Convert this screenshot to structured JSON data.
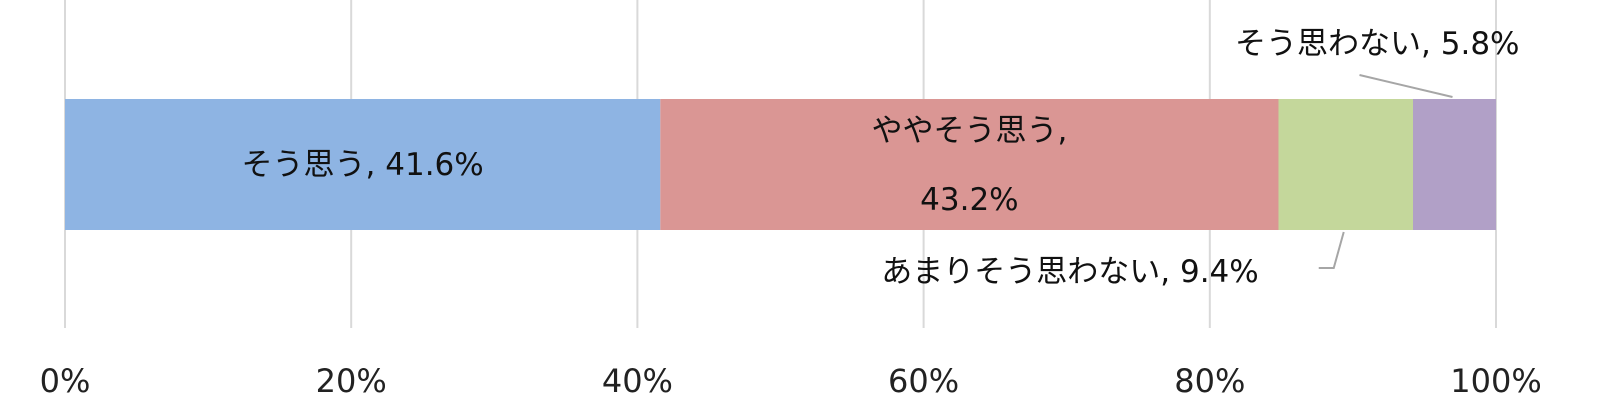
{
  "chart_data": {
    "type": "bar",
    "orientation": "horizontal",
    "stacked": true,
    "percent_axis": true,
    "xlim": [
      0,
      100
    ],
    "x_ticks": [
      "0%",
      "20%",
      "40%",
      "60%",
      "80%",
      "100%"
    ],
    "grid": true,
    "series": [
      {
        "label": "そう思う, 41.6%",
        "value": 41.6,
        "color": "#8eb4e3"
      },
      {
        "label": "ややそう思う, 43.2%",
        "label_lines": [
          "ややそう思う,",
          "43.2%"
        ],
        "value": 43.2,
        "color": "#da9694"
      },
      {
        "label": "あまりそう思わない, 9.4%",
        "value": 9.4,
        "color": "#c4d79b"
      },
      {
        "label": "そう思わない, 5.8%",
        "value": 5.8,
        "color": "#b1a0c7"
      }
    ]
  }
}
